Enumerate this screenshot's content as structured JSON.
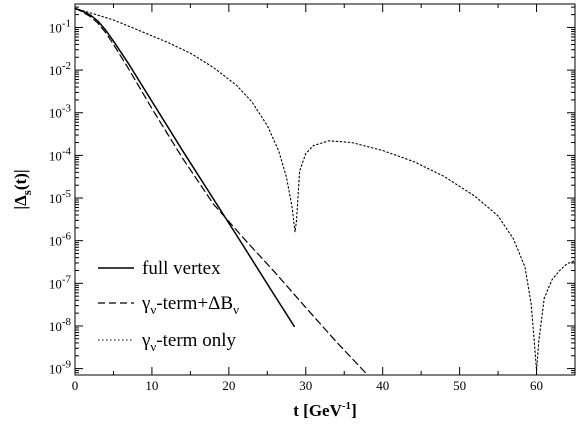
{
  "chart_data": {
    "type": "line",
    "xlabel": {
      "main": "t [GeV",
      "sup": "-1",
      "tail": "]"
    },
    "ylabel": {
      "open": "|Δ",
      "sub": "s",
      "close": "(t)|"
    },
    "xlim": [
      0,
      65
    ],
    "ylim_log10": [
      -9.15,
      -0.45
    ],
    "y_scale": "log",
    "x_ticks": [
      0,
      10,
      20,
      30,
      40,
      50,
      60
    ],
    "y_ticks": [
      {
        "exp": -1,
        "mant": "10",
        "sup": "-1"
      },
      {
        "exp": -2,
        "mant": "10",
        "sup": "-2"
      },
      {
        "exp": -3,
        "mant": "10",
        "sup": "-3"
      },
      {
        "exp": -4,
        "mant": "10",
        "sup": "-4"
      },
      {
        "exp": -5,
        "mant": "10",
        "sup": "-5"
      },
      {
        "exp": -6,
        "mant": "10",
        "sup": "-6"
      },
      {
        "exp": -7,
        "mant": "10",
        "sup": "-7"
      },
      {
        "exp": -8,
        "mant": "10",
        "sup": "-8"
      },
      {
        "exp": -9,
        "mant": "10",
        "sup": "-9"
      }
    ],
    "grid": false,
    "legend_position": "bottom-left",
    "series": [
      {
        "key": "full",
        "label": [
          {
            "t": "full vertex"
          }
        ],
        "style": "solid",
        "x": [
          0,
          1,
          2,
          3,
          4,
          5,
          7,
          10,
          14,
          18,
          22,
          26,
          28.5
        ],
        "y": [
          0.28,
          0.24,
          0.195,
          0.14,
          0.086,
          0.048,
          0.0138,
          0.00185,
          0.000128,
          9.5e-06,
          7e-07,
          5e-08,
          9.8e-09
        ]
      },
      {
        "key": "gamma_dB",
        "label": [
          {
            "t": "γ"
          },
          {
            "t": "ν",
            "sub": true
          },
          {
            "t": "-term+ΔB"
          },
          {
            "t": "ν",
            "sub": true
          }
        ],
        "style": "dashed",
        "x": [
          0,
          1,
          2,
          3,
          4,
          5,
          7,
          10,
          14,
          18,
          22,
          26,
          30,
          34,
          38,
          41,
          43,
          44.5
        ],
        "y": [
          0.28,
          0.23,
          0.18,
          0.125,
          0.075,
          0.04,
          0.0105,
          0.00125,
          8.5e-05,
          7.2e-06,
          1.1e-06,
          1.8e-07,
          2.7e-08,
          4.2e-09,
          7.2e-10,
          2e-10,
          1e-10,
          9e-11
        ]
      },
      {
        "key": "gamma_only",
        "label": [
          {
            "t": "γ"
          },
          {
            "t": "ν",
            "sub": true
          },
          {
            "t": "-term only"
          }
        ],
        "style": "dotted",
        "x": [
          0,
          2,
          5,
          8,
          12,
          15,
          18,
          21,
          23,
          25,
          26.5,
          27.5,
          28.2,
          28.6,
          28.8,
          29.2,
          30,
          31,
          33,
          36,
          40,
          44,
          48,
          52,
          55,
          57,
          58.5,
          59.3,
          59.7,
          60.0,
          60.3,
          61,
          62,
          63,
          64,
          65
        ],
        "y": [
          0.28,
          0.22,
          0.15,
          0.09,
          0.045,
          0.025,
          0.0115,
          0.0044,
          0.0018,
          0.0005,
          0.000125,
          3e-05,
          6.5e-06,
          1.6e-06,
          3e-06,
          4.3e-05,
          0.00011,
          0.00017,
          0.00022,
          0.0002,
          0.00013,
          7.2e-05,
          3.2e-05,
          1.1e-05,
          3.8e-06,
          1.1e-06,
          2.4e-07,
          3.3e-08,
          4.5e-09,
          9e-10,
          4.5e-09,
          4.5e-08,
          1.2e-07,
          2e-07,
          2.9e-07,
          3.4e-07
        ]
      }
    ]
  }
}
